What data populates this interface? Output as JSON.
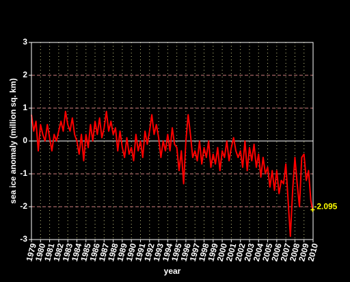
{
  "chart_data": {
    "type": "line",
    "xlabel": "year",
    "ylabel": "sea ice anomaly (million sq. km)",
    "x": [
      1979,
      1979.25,
      1979.5,
      1979.75,
      1980,
      1980.25,
      1980.5,
      1980.75,
      1981,
      1981.25,
      1981.5,
      1981.75,
      1982,
      1982.25,
      1982.5,
      1982.75,
      1983,
      1983.25,
      1983.5,
      1983.75,
      1984,
      1984.25,
      1984.5,
      1984.75,
      1985,
      1985.25,
      1985.5,
      1985.75,
      1986,
      1986.25,
      1986.5,
      1986.75,
      1987,
      1987.25,
      1987.5,
      1987.75,
      1988,
      1988.25,
      1988.5,
      1988.75,
      1989,
      1989.25,
      1989.5,
      1989.75,
      1990,
      1990.25,
      1990.5,
      1990.75,
      1991,
      1991.25,
      1991.5,
      1991.75,
      1992,
      1992.25,
      1992.5,
      1992.75,
      1993,
      1993.25,
      1993.5,
      1993.75,
      1994,
      1994.25,
      1994.5,
      1994.75,
      1995,
      1995.25,
      1995.5,
      1995.75,
      1996,
      1996.25,
      1996.5,
      1996.75,
      1997,
      1997.25,
      1997.5,
      1997.75,
      1998,
      1998.25,
      1998.5,
      1998.75,
      1999,
      1999.25,
      1999.5,
      1999.75,
      2000,
      2000.25,
      2000.5,
      2000.75,
      2001,
      2001.25,
      2001.5,
      2001.75,
      2002,
      2002.25,
      2002.5,
      2002.75,
      2003,
      2003.25,
      2003.5,
      2003.75,
      2004,
      2004.25,
      2004.5,
      2004.75,
      2005,
      2005.25,
      2005.5,
      2005.75,
      2006,
      2006.25,
      2006.5,
      2006.75,
      2007,
      2007.25,
      2007.5,
      2007.75,
      2008,
      2008.25,
      2008.5,
      2008.75,
      2009,
      2009.25,
      2009.5,
      2009.75,
      2009.95
    ],
    "series": [
      {
        "color": "#ff0000",
        "values": [
          0.8,
          0.3,
          0.6,
          -0.3,
          0.5,
          0.2,
          0.0,
          0.5,
          0.1,
          -0.3,
          0.2,
          0.0,
          0.3,
          0.6,
          0.3,
          0.9,
          0.5,
          0.3,
          0.7,
          0.2,
          0.0,
          -0.4,
          0.2,
          -0.6,
          0.2,
          -0.2,
          0.5,
          0.0,
          0.6,
          0.2,
          0.7,
          0.1,
          0.4,
          0.9,
          0.3,
          0.6,
          0.2,
          0.4,
          -0.3,
          0.3,
          -0.2,
          -0.5,
          0.1,
          -0.4,
          -0.2,
          -0.6,
          0.2,
          -0.3,
          0.0,
          -0.5,
          0.3,
          -0.1,
          0.3,
          0.8,
          0.2,
          0.5,
          0.1,
          -0.5,
          0.0,
          -0.3,
          0.2,
          -0.3,
          0.4,
          -0.1,
          -0.2,
          -0.9,
          -0.3,
          -1.3,
          0.0,
          0.8,
          0.2,
          -0.5,
          -0.3,
          -0.6,
          0.0,
          -0.7,
          -0.2,
          -0.5,
          0.0,
          -0.8,
          -0.4,
          -0.7,
          -0.2,
          -0.9,
          -0.3,
          -0.5,
          0.0,
          -0.6,
          -0.2,
          0.1,
          -0.3,
          -0.5,
          -0.3,
          -0.8,
          0.0,
          -0.9,
          -0.2,
          -0.6,
          -0.1,
          -0.8,
          -0.4,
          -1.1,
          -0.5,
          -1.0,
          -0.8,
          -1.4,
          -0.9,
          -1.5,
          -0.9,
          -1.6,
          -1.2,
          -1.3,
          -0.7,
          -1.8,
          -2.9,
          -1.5,
          -0.5,
          -1.3,
          -2.0,
          -0.5,
          -0.4,
          -1.2,
          -0.9,
          -1.8,
          -2.095
        ]
      }
    ],
    "annotation": {
      "x": 2009.95,
      "y": -2.095,
      "color": "#ffff00"
    },
    "xlim": [
      1979,
      2010
    ],
    "ylim": [
      -3,
      3
    ],
    "xticks": [
      1979,
      1980,
      1981,
      1982,
      1983,
      1984,
      1985,
      1986,
      1987,
      1988,
      1989,
      1990,
      1991,
      1992,
      1993,
      1994,
      1995,
      1996,
      1997,
      1998,
      1999,
      2000,
      2001,
      2002,
      2003,
      2004,
      2005,
      2006,
      2007,
      2008,
      2009,
      2010
    ],
    "yticks": [
      -3,
      -2,
      -1,
      0,
      1,
      2,
      3
    ],
    "grid": true
  }
}
